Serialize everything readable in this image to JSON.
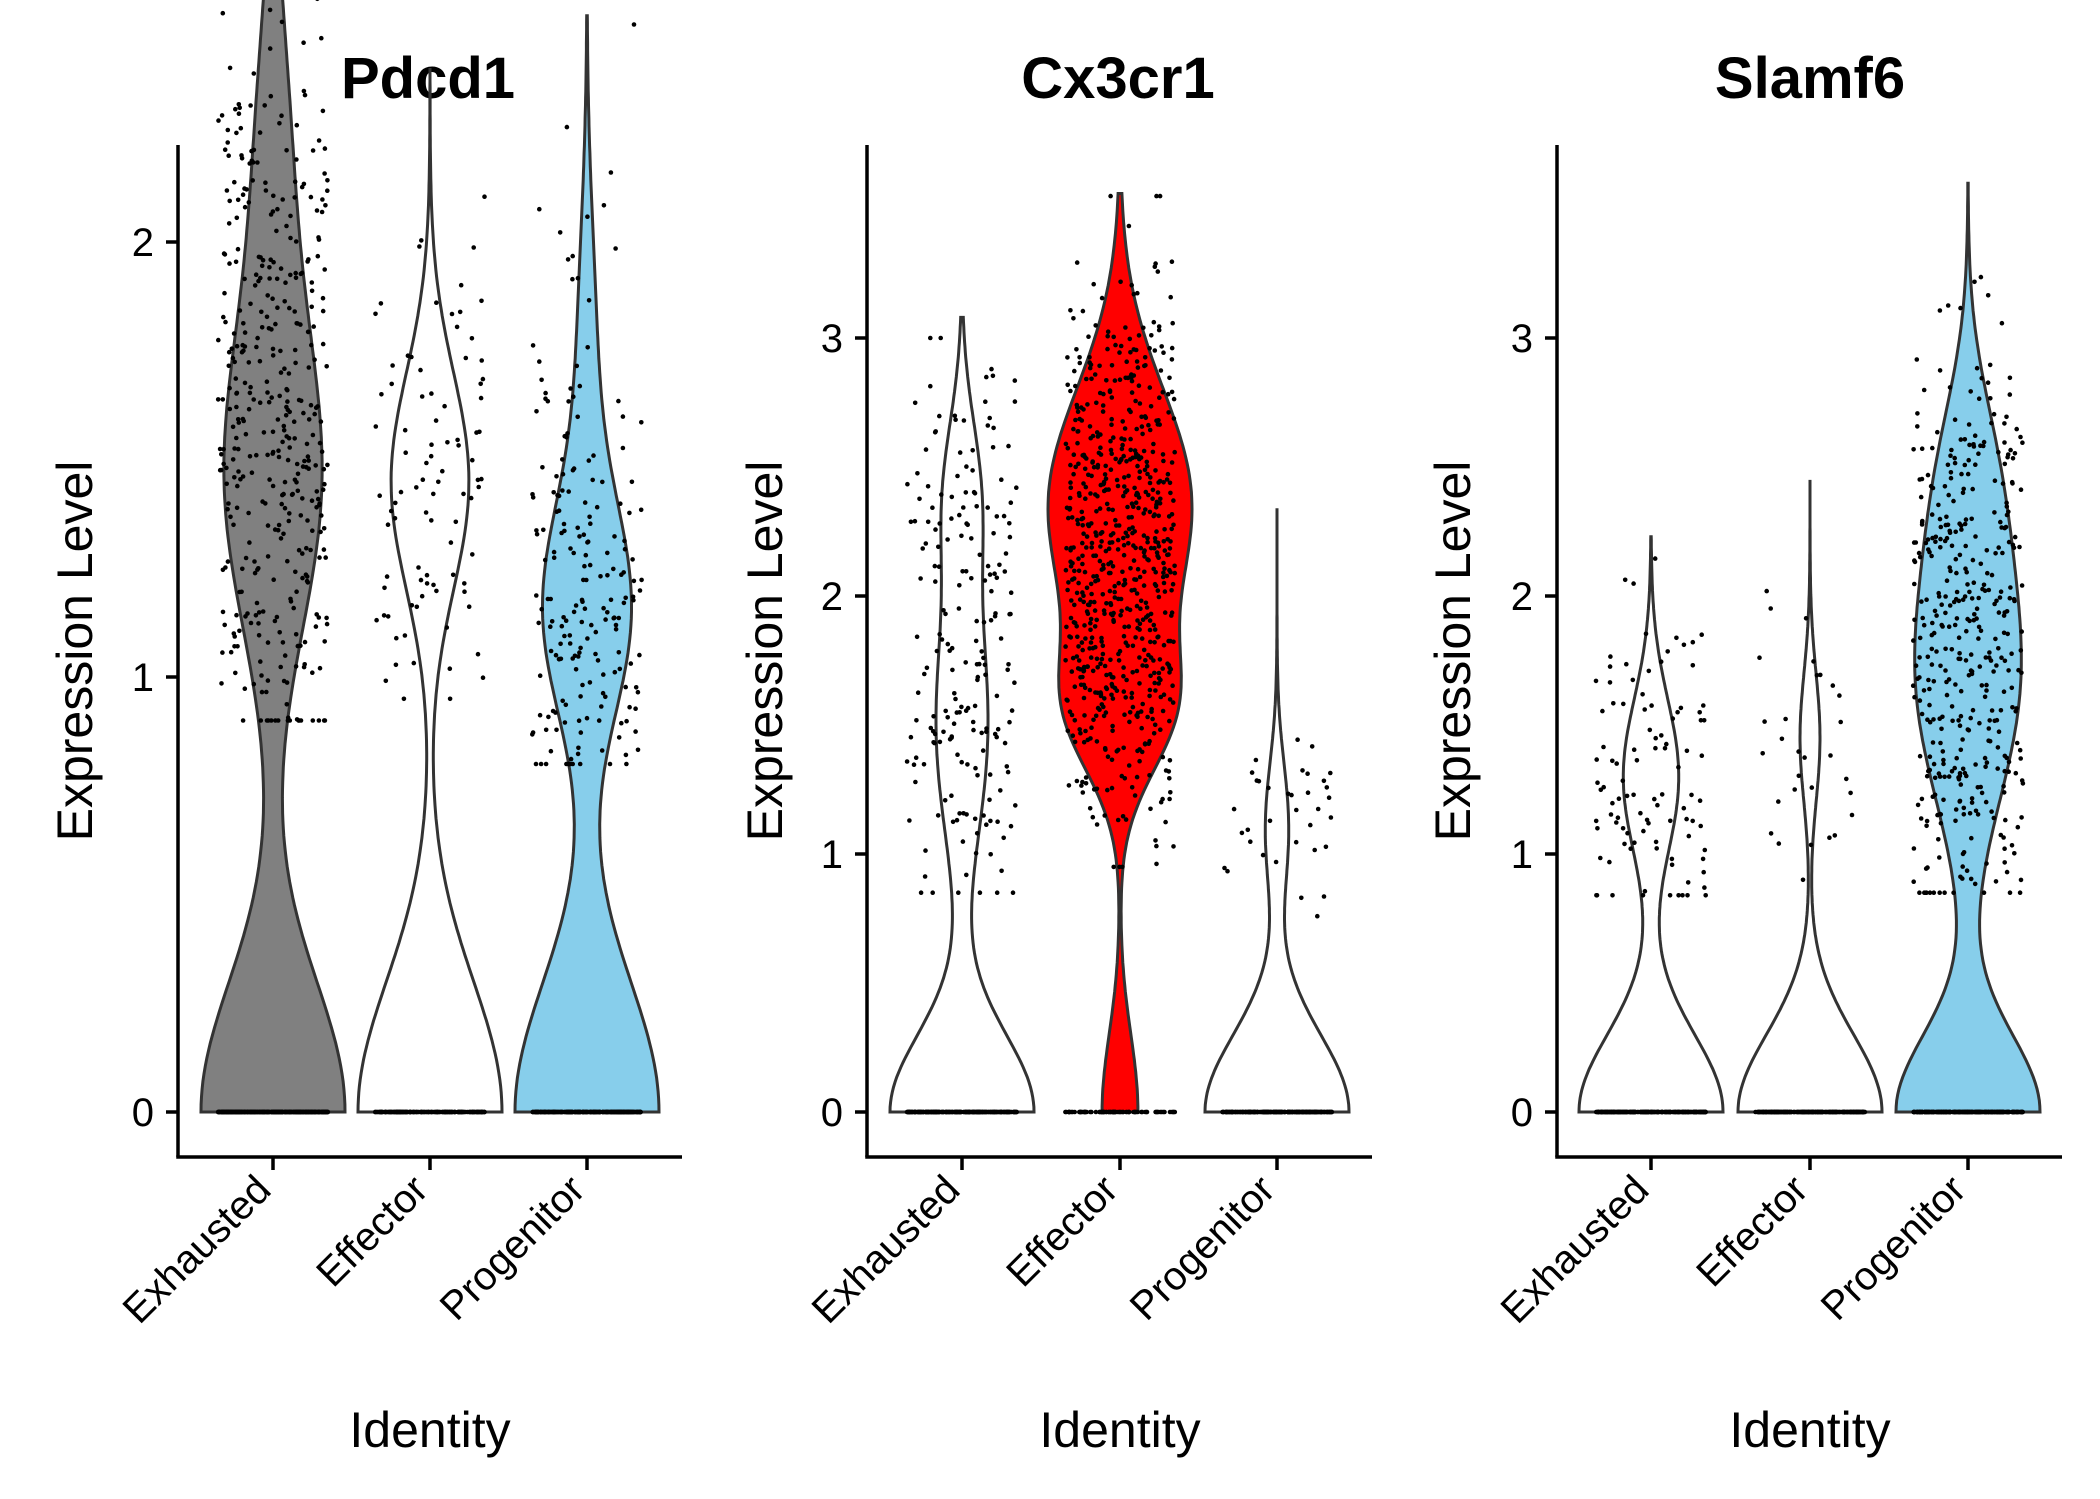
{
  "figure": {
    "xlabel": "Identity",
    "ylabel": "Expression Level"
  },
  "chart_data": [
    {
      "type": "violin",
      "title": "Pdcd1",
      "xlabel": "Identity",
      "ylabel": "Expression Level",
      "categories": [
        "Exhausted",
        "Effector",
        "Progenitor"
      ],
      "colors": [
        "#808080",
        "#FFFFFF",
        "#87CEEB"
      ],
      "y_ticks": [
        0,
        1,
        2
      ],
      "ylim": [
        -0.14,
        2.82
      ],
      "groups": [
        {
          "name": "Exhausted",
          "max": 2.82,
          "n_zero": 420,
          "n_pos": 430,
          "pos_range": [
            0.9,
            2.7
          ],
          "modes": [
            [
              1.45,
              0.35,
              0.75
            ],
            [
              2.2,
              0.35,
              0.25
            ]
          ]
        },
        {
          "name": "Effector",
          "max": 2.4,
          "n_zero": 200,
          "n_pos": 90,
          "pos_range": [
            0.95,
            2.3
          ],
          "modes": [
            [
              1.45,
              0.25,
              1.0
            ]
          ]
        },
        {
          "name": "Progenitor",
          "max": 2.52,
          "n_zero": 320,
          "n_pos": 200,
          "pos_range": [
            0.8,
            2.5
          ],
          "modes": [
            [
              1.15,
              0.25,
              0.8
            ],
            [
              1.75,
              0.3,
              0.2
            ]
          ]
        }
      ]
    },
    {
      "type": "violin",
      "title": "Cx3cr1",
      "xlabel": "Identity",
      "ylabel": "Expression Level",
      "categories": [
        "Exhausted",
        "Effector",
        "Progenitor"
      ],
      "colors": [
        "#FFFFFF",
        "#FF0000",
        "#FFFFFF"
      ],
      "y_ticks": [
        0,
        1,
        2,
        3
      ],
      "ylim": [
        -0.17,
        3.7
      ],
      "groups": [
        {
          "name": "Exhausted",
          "max": 3.08,
          "n_zero": 260,
          "n_pos": 200,
          "pos_range": [
            0.85,
            3.0
          ],
          "modes": [
            [
              1.5,
              0.45,
              0.7
            ],
            [
              2.4,
              0.3,
              0.3
            ]
          ]
        },
        {
          "name": "Effector",
          "max": 3.56,
          "n_zero": 90,
          "n_pos": 720,
          "pos_range": [
            0.95,
            3.55
          ],
          "modes": [
            [
              2.35,
              0.45,
              0.75
            ],
            [
              1.55,
              0.25,
              0.25
            ]
          ]
        },
        {
          "name": "Progenitor",
          "max": 2.34,
          "n_zero": 260,
          "n_pos": 35,
          "pos_range": [
            0.75,
            2.35
          ],
          "modes": [
            [
              1.1,
              0.25,
              1.0
            ]
          ]
        }
      ]
    },
    {
      "type": "violin",
      "title": "Slamf6",
      "xlabel": "Identity",
      "ylabel": "Expression Level",
      "categories": [
        "Exhausted",
        "Effector",
        "Progenitor"
      ],
      "colors": [
        "#FFFFFF",
        "#FFFFFF",
        "#87CEEB"
      ],
      "y_ticks": [
        0,
        1,
        2,
        3
      ],
      "ylim": [
        -0.17,
        3.73
      ],
      "groups": [
        {
          "name": "Exhausted",
          "max": 2.23,
          "n_zero": 260,
          "n_pos": 100,
          "pos_range": [
            0.84,
            2.23
          ],
          "modes": [
            [
              1.3,
              0.3,
              1.0
            ]
          ]
        },
        {
          "name": "Effector",
          "max": 2.45,
          "n_zero": 260,
          "n_pos": 30,
          "pos_range": [
            0.9,
            2.45
          ],
          "modes": [
            [
              1.45,
              0.25,
              1.0
            ]
          ]
        },
        {
          "name": "Progenitor",
          "max": 3.6,
          "n_zero": 280,
          "n_pos": 420,
          "pos_range": [
            0.85,
            3.6
          ],
          "modes": [
            [
              1.7,
              0.5,
              0.8
            ],
            [
              2.5,
              0.35,
              0.2
            ]
          ]
        }
      ]
    }
  ]
}
